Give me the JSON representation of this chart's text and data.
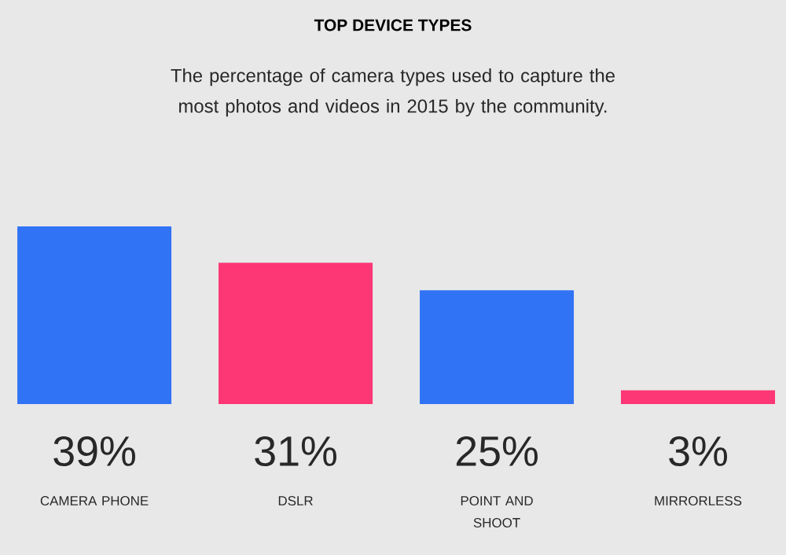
{
  "chart_data": {
    "type": "bar",
    "title": "TOP DEVICE TYPES",
    "subtitle": "The percentage of camera types used to capture the most photos and videos in 2015 by the community.",
    "categories": [
      "CAMERA PHONE",
      "DSLR",
      "POINT AND SHOOT",
      "MIRRORLESS"
    ],
    "values": [
      39,
      31,
      25,
      3
    ],
    "colors": [
      "#3173f5",
      "#fd3675",
      "#3173f5",
      "#fd3675"
    ],
    "value_labels": [
      "39%",
      "31%",
      "25%",
      "3%"
    ]
  }
}
